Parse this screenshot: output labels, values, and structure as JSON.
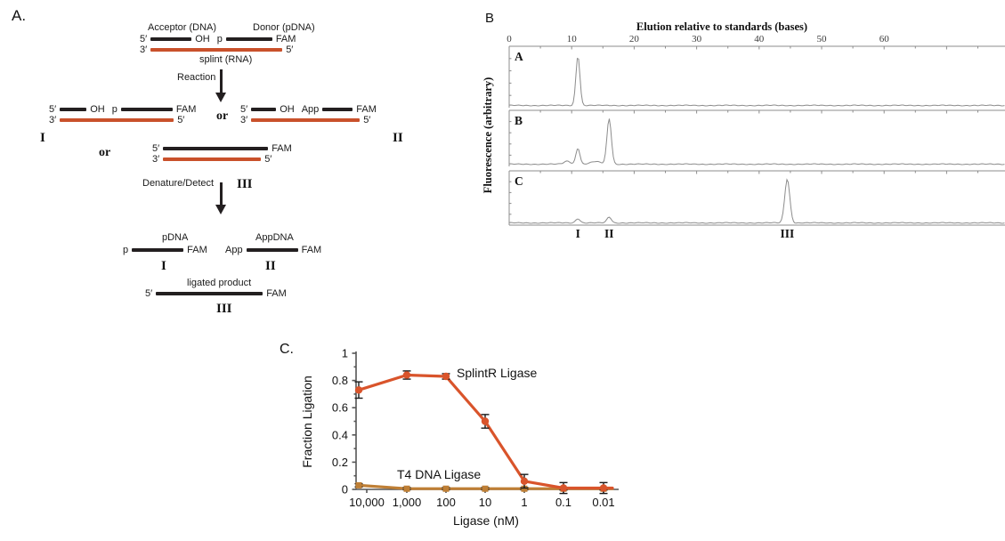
{
  "colors": {
    "dna_black": "#231f20",
    "rna_red": "#c9512b",
    "splintr_red": "#d9542b",
    "t4_brown": "#bf7f35",
    "trace_gray": "#8c8c8c",
    "axis_gray": "#555555",
    "error_bar": "#1a1a1a",
    "text": "#1a1a1a"
  },
  "panel_a": {
    "label": "A.",
    "acceptor": "Acceptor (DNA)",
    "donor": "Donor (pDNA)",
    "p5": "5′",
    "p3": "3′",
    "oh": "OH",
    "p": "p",
    "app": "App",
    "fam": "FAM",
    "splint": "splint (RNA)",
    "reaction": "Reaction",
    "or": "or",
    "n1": "I",
    "n2": "II",
    "n3": "III",
    "denature": "Denature/Detect",
    "pdna": "pDNA",
    "appdna": "AppDNA",
    "ligated": "ligated product"
  },
  "chart_data": [
    {
      "id": "panel_b_chromatograms",
      "type": "line",
      "panel_label": "B",
      "title": "Elution relative to standards (bases)",
      "ylabel": "Fluorescence (arbitrary)",
      "x_ticks": [
        0,
        10,
        20,
        30,
        40,
        50,
        60
      ],
      "xlim": [
        0,
        79
      ],
      "traces": [
        {
          "label": "A",
          "peaks": [
            {
              "position_bases": 11,
              "rel_height": 0.89,
              "sigma_bases": 0.32
            }
          ]
        },
        {
          "label": "B",
          "peaks": [
            {
              "position_bases": 9.3,
              "rel_height": 0.06,
              "sigma_bases": 0.5
            },
            {
              "position_bases": 11,
              "rel_height": 0.32,
              "sigma_bases": 0.32
            },
            {
              "position_bases": 13.8,
              "rel_height": 0.05,
              "sigma_bases": 0.8
            },
            {
              "position_bases": 16,
              "rel_height": 0.9,
              "sigma_bases": 0.35
            }
          ]
        },
        {
          "label": "C",
          "peaks": [
            {
              "position_bases": 11,
              "rel_height": 0.09,
              "sigma_bases": 0.35
            },
            {
              "position_bases": 16,
              "rel_height": 0.12,
              "sigma_bases": 0.35
            },
            {
              "position_bases": 44.5,
              "rel_height": 0.9,
              "sigma_bases": 0.4
            }
          ]
        }
      ],
      "peak_labels": [
        {
          "text": "I",
          "position_bases": 11
        },
        {
          "text": "II",
          "position_bases": 16
        },
        {
          "text": "III",
          "position_bases": 44.5
        }
      ]
    },
    {
      "id": "panel_c_titration",
      "type": "line",
      "panel_label": "C.",
      "xlabel": "Ligase (nM)",
      "ylabel": "Fraction Ligation",
      "x_categories": [
        "10,000",
        "1,000",
        "100",
        "10",
        "1",
        "0.1",
        "0.01"
      ],
      "ylim": [
        0,
        1
      ],
      "y_ticks": [
        0,
        0.2,
        0.4,
        0.6,
        0.8,
        1
      ],
      "y_minor_ticks": [
        0.1,
        0.3,
        0.5,
        0.7,
        0.9
      ],
      "legend_position": "inline-labels",
      "series": [
        {
          "name": "SplintR Ligase",
          "color": "#d9542b",
          "marker": "circle",
          "values": [
            0.73,
            0.84,
            0.83,
            0.5,
            0.06,
            0.01,
            0.01
          ],
          "errors": [
            0.06,
            0.03,
            0.02,
            0.05,
            0.05,
            0.04,
            0.04
          ]
        },
        {
          "name": "T4 DNA Ligase",
          "color": "#bf7f35",
          "marker": "square",
          "values": [
            0.03,
            0.005,
            0.005,
            0.005,
            0.005,
            0.005,
            0.005
          ],
          "errors": [
            0.012,
            0.008,
            0.008,
            0.008,
            0.008,
            0.01,
            0.01
          ]
        }
      ]
    }
  ]
}
